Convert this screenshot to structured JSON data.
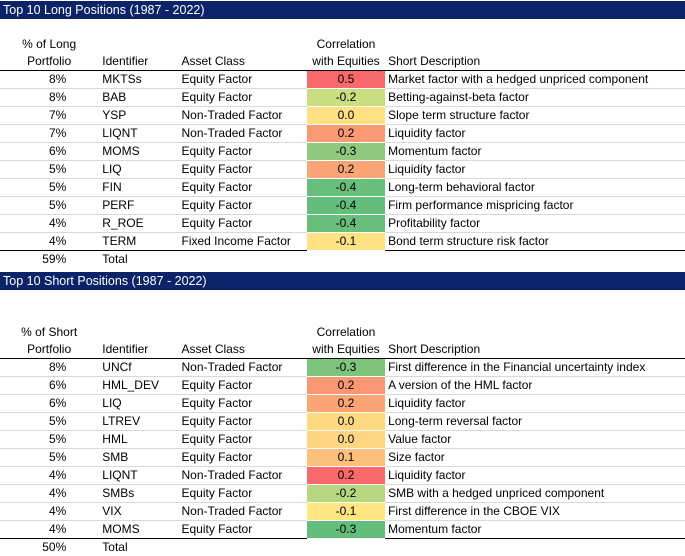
{
  "long": {
    "title": "Top 10 Long Positions (1987 - 2022)",
    "headers": {
      "pct_line1": "% of Long",
      "pct_line2": "Portfolio",
      "identifier": "Identifier",
      "asset_class": "Asset Class",
      "corr_line1": "Correlation",
      "corr_line2": "with Equities",
      "description": "Short Description"
    },
    "rows": [
      {
        "pct": "8%",
        "id": "MKTSs",
        "asset": "Equity Factor",
        "corr": "0.5",
        "corr_color": "#f8696b",
        "desc": "Market factor with a hedged unpriced component"
      },
      {
        "pct": "8%",
        "id": "BAB",
        "asset": "Equity Factor",
        "corr": "-0.2",
        "corr_color": "#c9dd81",
        "desc": "Betting-against-beta factor"
      },
      {
        "pct": "7%",
        "id": "YSP",
        "asset": "Non-Traded Factor",
        "corr": "0.0",
        "corr_color": "#ffe083",
        "desc": "Slope term structure factor"
      },
      {
        "pct": "7%",
        "id": "LIQNT",
        "asset": "Non-Traded Factor",
        "corr": "0.2",
        "corr_color": "#fa9a74",
        "desc": "Liquidity factor"
      },
      {
        "pct": "6%",
        "id": "MOMS",
        "asset": "Equity Factor",
        "corr": "-0.3",
        "corr_color": "#8ec97d",
        "desc": "Momentum factor"
      },
      {
        "pct": "5%",
        "id": "LIQ",
        "asset": "Equity Factor",
        "corr": "0.2",
        "corr_color": "#fba576",
        "desc": "Liquidity factor"
      },
      {
        "pct": "5%",
        "id": "FIN",
        "asset": "Equity Factor",
        "corr": "-0.4",
        "corr_color": "#67bf7b",
        "desc": "Long-term behavioral factor"
      },
      {
        "pct": "5%",
        "id": "PERF",
        "asset": "Equity Factor",
        "corr": "-0.4",
        "corr_color": "#63be7b",
        "desc": "Firm performance mispricing factor"
      },
      {
        "pct": "4%",
        "id": "R_ROE",
        "asset": "Equity Factor",
        "corr": "-0.4",
        "corr_color": "#68bf7b",
        "desc": "Profitability factor"
      },
      {
        "pct": "4%",
        "id": "TERM",
        "asset": "Fixed Income Factor",
        "corr": "-0.1",
        "corr_color": "#fee283",
        "desc": "Bond term structure risk factor"
      }
    ],
    "total_pct": "59%",
    "total_label": "Total"
  },
  "short": {
    "title": "Top 10 Short Positions (1987 - 2022)",
    "headers": {
      "pct_line1": "% of Short",
      "pct_line2": "Portfolio",
      "identifier": "Identifier",
      "asset_class": "Asset Class",
      "corr_line1": "Correlation",
      "corr_line2": "with Equities",
      "description": "Short Description"
    },
    "rows": [
      {
        "pct": "8%",
        "id": "UNCf",
        "asset": "Non-Traded Factor",
        "corr": "-0.3",
        "corr_color": "#7fc47c",
        "desc": "First difference in the Financial uncertainty index"
      },
      {
        "pct": "6%",
        "id": "HML_DEV",
        "asset": "Equity Factor",
        "corr": "0.2",
        "corr_color": "#fa9773",
        "desc": "A version of the HML factor"
      },
      {
        "pct": "6%",
        "id": "LIQ",
        "asset": "Equity Factor",
        "corr": "0.2",
        "corr_color": "#fba476",
        "desc": "Liquidity factor"
      },
      {
        "pct": "5%",
        "id": "LTREV",
        "asset": "Equity Factor",
        "corr": "0.0",
        "corr_color": "#fed980",
        "desc": "Long-term reversal factor"
      },
      {
        "pct": "5%",
        "id": "HML",
        "asset": "Equity Factor",
        "corr": "0.0",
        "corr_color": "#fed580",
        "desc": "Value factor"
      },
      {
        "pct": "5%",
        "id": "SMB",
        "asset": "Equity Factor",
        "corr": "0.1",
        "corr_color": "#fdc07c",
        "desc": "Size factor"
      },
      {
        "pct": "4%",
        "id": "LIQNT",
        "asset": "Non-Traded Factor",
        "corr": "0.2",
        "corr_color": "#f8696b",
        "desc": "Liquidity factor"
      },
      {
        "pct": "4%",
        "id": "SMBs",
        "asset": "Equity Factor",
        "corr": "-0.2",
        "corr_color": "#b6d680",
        "desc": "SMB with a hedged unpriced component"
      },
      {
        "pct": "4%",
        "id": "VIX",
        "asset": "Non-Traded Factor",
        "corr": "-0.1",
        "corr_color": "#fee683",
        "desc": "First difference in the CBOE VIX"
      },
      {
        "pct": "4%",
        "id": "MOMS",
        "asset": "Equity Factor",
        "corr": "-0.3",
        "corr_color": "#63be7b",
        "desc": "Momentum factor"
      }
    ],
    "total_pct": "50%",
    "total_label": "Total"
  }
}
